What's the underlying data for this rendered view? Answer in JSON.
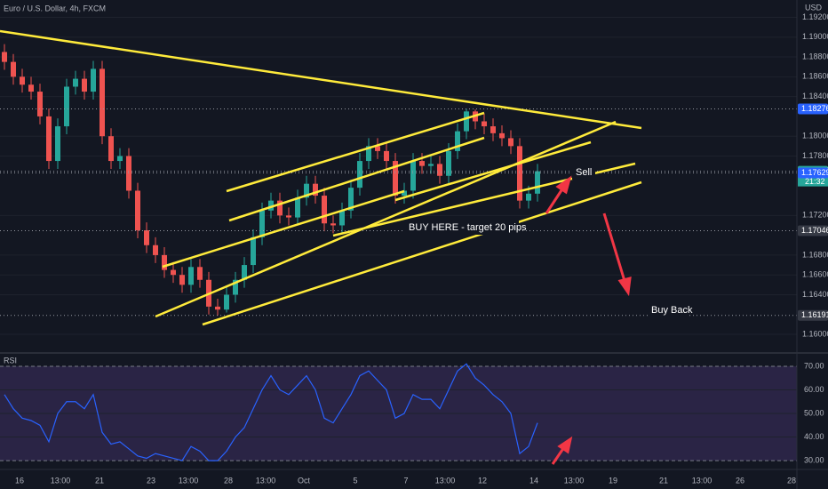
{
  "chart_data": [
    {
      "type": "candlestick",
      "title": "Euro / U.S. Dollar, 4h, FXCM",
      "currency": "USD",
      "open": [
        1.1885,
        1.1875,
        1.186,
        1.1852,
        1.1845,
        1.182,
        1.1775,
        1.181,
        1.185,
        1.1858,
        1.1845,
        1.1868,
        1.18,
        1.1775,
        1.178,
        1.1745,
        1.1705,
        1.169,
        1.168,
        1.1665,
        1.166,
        1.165,
        1.1668,
        1.1655,
        1.1628,
        1.1625,
        1.164,
        1.1655,
        1.167,
        1.1698,
        1.1725,
        1.1735,
        1.172,
        1.1718,
        1.1738,
        1.1752,
        1.174,
        1.1712,
        1.171,
        1.1725,
        1.1748,
        1.1775,
        1.179,
        1.1785,
        1.1775,
        1.174,
        1.1745,
        1.1775,
        1.177,
        1.1772,
        1.176,
        1.1785,
        1.1805,
        1.1825,
        1.1815,
        1.181,
        1.1803,
        1.1798,
        1.179,
        1.1735,
        1.1742
      ],
      "high": [
        1.1893,
        1.1883,
        1.1868,
        1.186,
        1.1853,
        1.1828,
        1.1818,
        1.1858,
        1.1866,
        1.1866,
        1.1876,
        1.1876,
        1.1808,
        1.1788,
        1.1788,
        1.1753,
        1.1713,
        1.1698,
        1.1688,
        1.1673,
        1.1668,
        1.1676,
        1.1676,
        1.1663,
        1.1636,
        1.1648,
        1.1663,
        1.1678,
        1.1706,
        1.1733,
        1.1743,
        1.1743,
        1.1728,
        1.1746,
        1.176,
        1.176,
        1.1748,
        1.172,
        1.1733,
        1.1756,
        1.1783,
        1.1798,
        1.1798,
        1.1793,
        1.1783,
        1.1753,
        1.1783,
        1.1783,
        1.178,
        1.178,
        1.1793,
        1.1813,
        1.18276,
        1.1827,
        1.1823,
        1.1818,
        1.1811,
        1.1806,
        1.1798,
        1.175,
        1.1772
      ],
      "low": [
        1.1867,
        1.1852,
        1.1844,
        1.1837,
        1.1812,
        1.1767,
        1.1767,
        1.1802,
        1.1842,
        1.1837,
        1.1837,
        1.1792,
        1.1767,
        1.1767,
        1.1737,
        1.1697,
        1.1682,
        1.1672,
        1.1657,
        1.1652,
        1.1642,
        1.1642,
        1.1647,
        1.162,
        1.16191,
        1.1622,
        1.1632,
        1.1647,
        1.1662,
        1.169,
        1.1717,
        1.1712,
        1.171,
        1.171,
        1.173,
        1.1732,
        1.1704,
        1.1702,
        1.1702,
        1.1717,
        1.174,
        1.1767,
        1.1777,
        1.1767,
        1.1732,
        1.1732,
        1.1737,
        1.1762,
        1.1762,
        1.1752,
        1.1752,
        1.1777,
        1.1797,
        1.1807,
        1.1802,
        1.1795,
        1.179,
        1.1782,
        1.1727,
        1.1727,
        1.1734
      ],
      "close": [
        1.1875,
        1.186,
        1.1852,
        1.1845,
        1.182,
        1.1775,
        1.181,
        1.185,
        1.1858,
        1.1845,
        1.1868,
        1.18,
        1.1775,
        1.178,
        1.1745,
        1.1705,
        1.169,
        1.168,
        1.1665,
        1.166,
        1.165,
        1.1668,
        1.1655,
        1.1628,
        1.1625,
        1.164,
        1.1655,
        1.167,
        1.1698,
        1.1725,
        1.1735,
        1.172,
        1.1718,
        1.1738,
        1.1752,
        1.174,
        1.1712,
        1.171,
        1.1725,
        1.1748,
        1.1775,
        1.179,
        1.1785,
        1.1775,
        1.174,
        1.1745,
        1.1775,
        1.177,
        1.1772,
        1.176,
        1.1785,
        1.1805,
        1.1825,
        1.1815,
        1.181,
        1.1803,
        1.1798,
        1.179,
        1.1735,
        1.1742,
        1.17646
      ],
      "up_color": "#26a69a",
      "down_color": "#ef5350",
      "ylim": [
        1.1583,
        1.1933
      ],
      "yticks": [
        {
          "value": 1.192,
          "label": "1.19200"
        },
        {
          "value": 1.19,
          "label": "1.19000"
        },
        {
          "value": 1.188,
          "label": "1.18800"
        },
        {
          "value": 1.186,
          "label": "1.18600"
        },
        {
          "value": 1.184,
          "label": "1.18400"
        },
        {
          "value": 1.18,
          "label": "1.18000"
        },
        {
          "value": 1.178,
          "label": "1.17800"
        },
        {
          "value": 1.172,
          "label": "1.17200"
        },
        {
          "value": 1.168,
          "label": "1.16800"
        },
        {
          "value": 1.166,
          "label": "1.16600"
        },
        {
          "value": 1.164,
          "label": "1.16400"
        },
        {
          "value": 1.16,
          "label": "1.16000"
        }
      ],
      "price_lines": [
        {
          "value": 1.18276,
          "color": "#2962ff"
        },
        {
          "value": 1.17646,
          "color": "#26a69a"
        },
        {
          "value": 1.17629,
          "color": "#2962ff"
        },
        {
          "value": 1.17046,
          "color": "#363a45"
        },
        {
          "value": 1.16191,
          "color": "#363a45"
        }
      ],
      "countdown": "21:32",
      "annotations": [
        "Sell",
        "BUY HERE - target 20 pips",
        "Buy Back"
      ],
      "grid": true
    },
    {
      "type": "line",
      "title": "RSI",
      "color": "#2962ff",
      "values": [
        58,
        52,
        48,
        47,
        45,
        38,
        50,
        55,
        55,
        52,
        58,
        42,
        37,
        38,
        35,
        32,
        31,
        33,
        32,
        31,
        30,
        36,
        34,
        30,
        30,
        34,
        40,
        44,
        52,
        60,
        66,
        60,
        58,
        62,
        66,
        60,
        48,
        46,
        52,
        58,
        66,
        68,
        64,
        60,
        48,
        50,
        58,
        56,
        56,
        52,
        60,
        68,
        71,
        65,
        62,
        58,
        55,
        50,
        33,
        36,
        46
      ],
      "ylim": [
        27.4,
        74.5
      ],
      "yticks": [
        {
          "value": 70,
          "label": "70.00"
        },
        {
          "value": 60,
          "label": "60.00"
        },
        {
          "value": 50,
          "label": "50.00"
        },
        {
          "value": 40,
          "label": "40.00"
        },
        {
          "value": 30,
          "label": "30.00"
        }
      ],
      "band": [
        30,
        70
      ],
      "band_color": "rgba(126,87,194,0.22)",
      "x_labels": [
        "16",
        "13:00",
        "21",
        "23",
        "13:00",
        "28",
        "13:00",
        "Oct",
        "5",
        "7",
        "13:00",
        "12",
        "14",
        "13:00",
        "19",
        "21",
        "13:00",
        "26",
        "28"
      ]
    }
  ]
}
